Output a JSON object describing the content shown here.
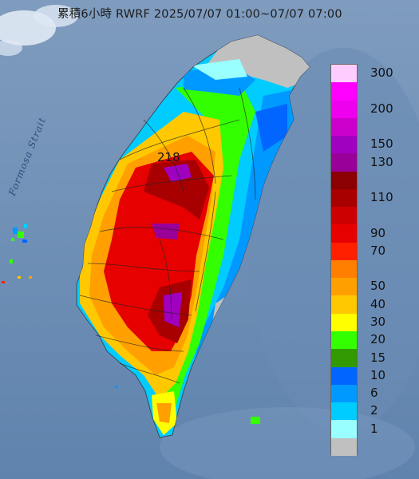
{
  "title": "累積6小時 RWRF 2025/07/07 01:00~07/07 07:00",
  "strait_label": "Formosa Strait",
  "max_value_label": "218",
  "legend": {
    "units_order": "top-to-bottom",
    "items": [
      {
        "label": "300",
        "color": "#ffccff"
      },
      {
        "label": "",
        "color": "#ff00ff"
      },
      {
        "label": "200",
        "color": "#ee00ee"
      },
      {
        "label": "",
        "color": "#cc00cc"
      },
      {
        "label": "150",
        "color": "#a000c0"
      },
      {
        "label": "130",
        "color": "#990099"
      },
      {
        "label": "",
        "color": "#8b0000"
      },
      {
        "label": "110",
        "color": "#a80000"
      },
      {
        "label": "",
        "color": "#cc0000"
      },
      {
        "label": "90",
        "color": "#e60000"
      },
      {
        "label": "70",
        "color": "#ff2000"
      },
      {
        "label": "",
        "color": "#ff8000"
      },
      {
        "label": "50",
        "color": "#ffa000"
      },
      {
        "label": "40",
        "color": "#ffc800"
      },
      {
        "label": "30",
        "color": "#ffff00"
      },
      {
        "label": "20",
        "color": "#33ff00"
      },
      {
        "label": "15",
        "color": "#339900"
      },
      {
        "label": "10",
        "color": "#0066ff"
      },
      {
        "label": "6",
        "color": "#0099ff"
      },
      {
        "label": "2",
        "color": "#00ccff"
      },
      {
        "label": "1",
        "color": "#99ffff"
      },
      {
        "label": "",
        "color": "#c0c0c0"
      }
    ]
  }
}
